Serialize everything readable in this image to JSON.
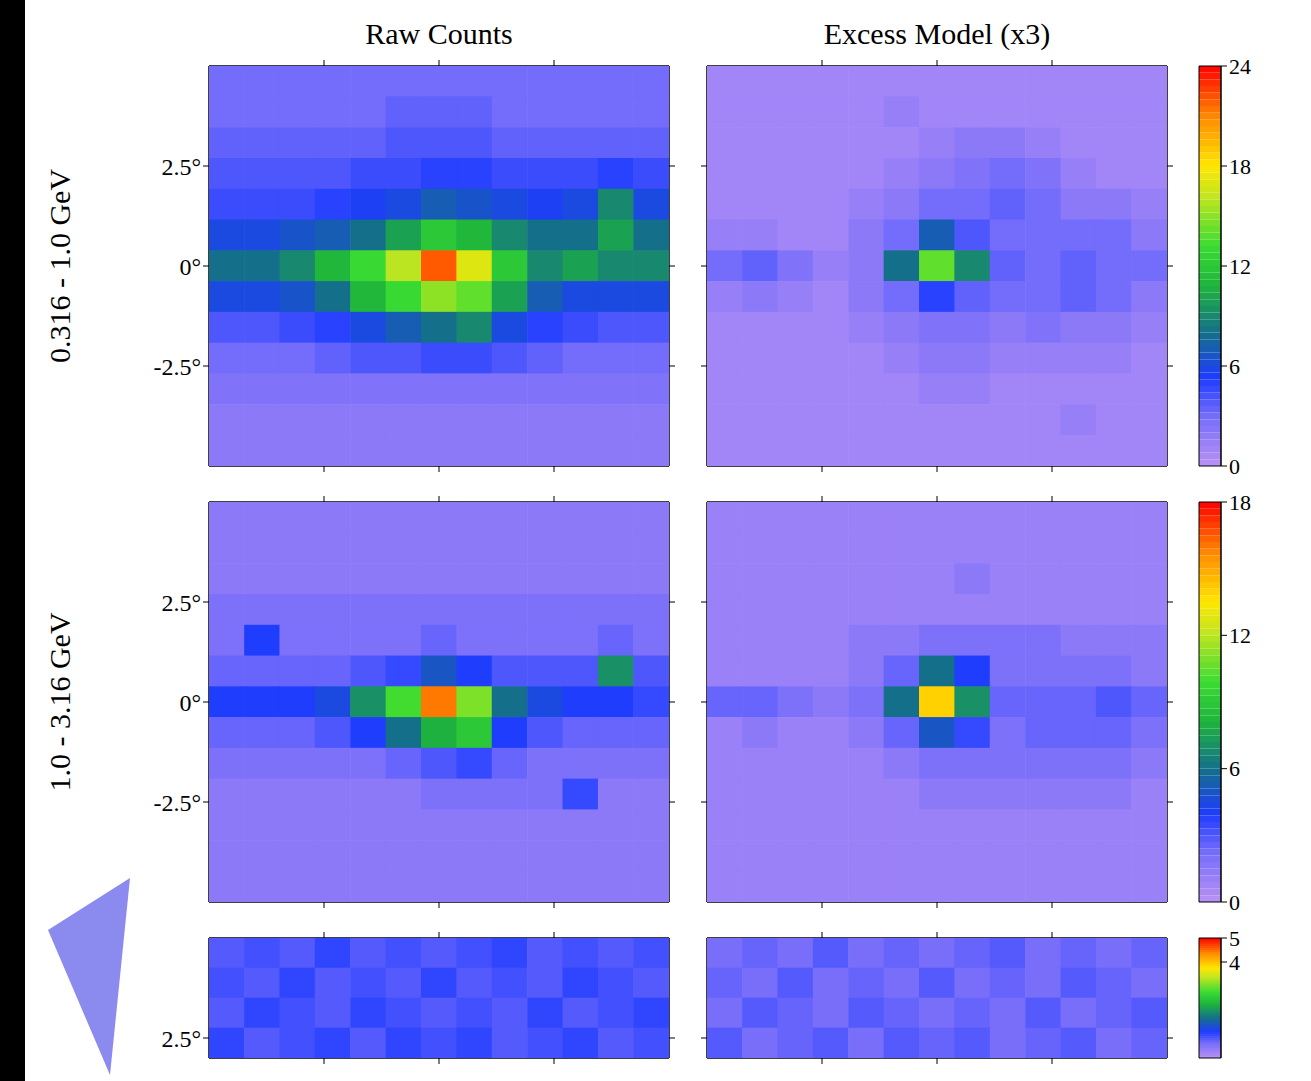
{
  "chart_data": [
    {
      "type": "heatmap",
      "ylabel": "0.316 - 1.0 GeV",
      "x": [
        -4.615,
        -3.846,
        -3.077,
        -2.308,
        -1.538,
        -0.769,
        0,
        0.769,
        1.538,
        2.308,
        3.077,
        3.846,
        4.615
      ],
      "y": [
        4.615,
        3.846,
        3.077,
        2.308,
        1.538,
        0.769,
        0,
        -0.769,
        -1.538,
        -2.308,
        -3.077,
        -3.846,
        -4.615
      ],
      "xlim": [
        -5,
        5
      ],
      "ylim": [
        -5,
        5
      ],
      "xticks": [
        -2.5,
        0,
        2.5
      ],
      "yticks": [
        {
          "value": 2.5,
          "label": "2.5°"
        },
        {
          "value": 0,
          "label": "0°"
        },
        {
          "value": -2.5,
          "label": "-2.5°"
        }
      ],
      "colorbar": {
        "lim": [
          0,
          24
        ],
        "ticks": [
          0,
          6,
          12,
          18,
          24
        ]
      },
      "panels": [
        {
          "title": "Raw Counts",
          "tick_labels": "y",
          "values": [
            [
              3,
              3,
              3,
              3,
              3,
              3,
              3,
              3,
              3,
              3,
              3,
              3,
              3
            ],
            [
              3,
              3,
              3,
              3,
              3,
              3.5,
              3.5,
              3.5,
              3,
              3,
              3,
              3,
              3
            ],
            [
              3.5,
              3.5,
              3.5,
              3.5,
              3.5,
              4,
              4,
              4,
              3.5,
              3.5,
              3.5,
              3.5,
              3.5
            ],
            [
              4,
              4,
              4,
              4,
              4.5,
              4.5,
              5,
              5,
              4.5,
              4.5,
              4.5,
              5,
              4.5
            ],
            [
              4.5,
              4.5,
              4.5,
              5,
              5.5,
              6,
              7,
              6.5,
              6,
              5.5,
              6,
              9,
              6
            ],
            [
              6,
              6,
              6.5,
              7,
              8,
              10,
              12,
              11,
              9,
              8,
              8,
              10,
              8
            ],
            [
              8,
              8,
              9,
              11,
              13,
              16,
              22,
              17,
              12,
              9,
              10,
              9,
              9
            ],
            [
              6,
              6,
              6.5,
              8,
              11,
              13,
              15,
              14,
              10,
              7,
              6,
              6,
              6
            ],
            [
              4,
              4,
              4.5,
              5,
              6,
              7,
              8,
              9,
              6,
              5,
              4.5,
              4,
              4
            ],
            [
              3,
              3,
              3,
              3.5,
              4,
              4,
              4.5,
              4.5,
              4,
              3.5,
              3,
              3,
              3
            ],
            [
              2.5,
              2.5,
              2.5,
              2.5,
              2.5,
              2.5,
              2.5,
              2.5,
              2.5,
              2.5,
              2.5,
              2.5,
              2.5
            ],
            [
              2,
              2,
              2,
              2,
              2,
              2,
              2,
              2,
              2,
              2,
              2,
              2,
              2
            ],
            [
              2,
              2,
              2,
              2,
              2,
              2,
              2,
              2,
              2,
              2,
              2,
              2,
              2
            ]
          ]
        },
        {
          "title": "Excess Model (x3)",
          "tick_labels": false,
          "values": [
            [
              1,
              1,
              1,
              1,
              1,
              1,
              1,
              1,
              1,
              1,
              1,
              1,
              1
            ],
            [
              1,
              1,
              1,
              1,
              1,
              1.5,
              1,
              1,
              1,
              1,
              1,
              1,
              1
            ],
            [
              1,
              1,
              1,
              1,
              1,
              1,
              1.5,
              2,
              2,
              1.5,
              1,
              1,
              1
            ],
            [
              1,
              1,
              1,
              1,
              1,
              1.5,
              2,
              2.5,
              3,
              2.5,
              1.5,
              1,
              1
            ],
            [
              1,
              1,
              1,
              1,
              1.5,
              2,
              3,
              3,
              3.5,
              3,
              2,
              2,
              1.5
            ],
            [
              1.5,
              1.5,
              1,
              1,
              2,
              3,
              7,
              4,
              3,
              3,
              3,
              3,
              2
            ],
            [
              3,
              3.5,
              2.5,
              1.5,
              2,
              8,
              14,
              9,
              3.5,
              3,
              3.5,
              3,
              3
            ],
            [
              1.5,
              2,
              1.5,
              1,
              2,
              3,
              5,
              3.5,
              3,
              3,
              3.5,
              3,
              2
            ],
            [
              1,
              1,
              1,
              1,
              1.5,
              2,
              2.5,
              2.5,
              2,
              2.5,
              2,
              2,
              1.5
            ],
            [
              1,
              1,
              1,
              1,
              1,
              1.5,
              2,
              2,
              1.5,
              1.5,
              1.5,
              1.5,
              1
            ],
            [
              1,
              1,
              1,
              1,
              1,
              1,
              1.5,
              1.5,
              1,
              1,
              1,
              1,
              1
            ],
            [
              1,
              1,
              1,
              1,
              1,
              1,
              1,
              1,
              1,
              1,
              1.5,
              1,
              1
            ],
            [
              1,
              1,
              1,
              1,
              1,
              1,
              1,
              1,
              1,
              1,
              1,
              1,
              1
            ]
          ]
        }
      ]
    },
    {
      "type": "heatmap",
      "ylabel": "1.0 - 3.16 GeV",
      "x": [
        -4.615,
        -3.846,
        -3.077,
        -2.308,
        -1.538,
        -0.769,
        0,
        0.769,
        1.538,
        2.308,
        3.077,
        3.846,
        4.615
      ],
      "y": [
        4.615,
        3.846,
        3.077,
        2.308,
        1.538,
        0.769,
        0,
        -0.769,
        -1.538,
        -2.308,
        -3.077,
        -3.846,
        -4.615
      ],
      "xlim": [
        -5,
        5
      ],
      "ylim": [
        -5,
        5
      ],
      "xticks": [
        -2.5,
        0,
        2.5
      ],
      "yticks": [
        {
          "value": 2.5,
          "label": "2.5°"
        },
        {
          "value": 0,
          "label": "0°"
        },
        {
          "value": -2.5,
          "label": "-2.5°"
        }
      ],
      "colorbar": {
        "lim": [
          0,
          18
        ],
        "ticks": [
          0,
          6,
          12,
          18
        ]
      },
      "panels": [
        {
          "tick_labels": "y",
          "values": [
            [
              1.5,
              1.5,
              1.5,
              1.5,
              1.5,
              1.5,
              1.5,
              1.5,
              1.5,
              1.5,
              1.5,
              1.5,
              1.5
            ],
            [
              1.5,
              1.5,
              1.5,
              1.5,
              1.5,
              1.5,
              1.5,
              1.5,
              1.5,
              1.5,
              1.5,
              1.5,
              1.5
            ],
            [
              1.5,
              1.5,
              1.5,
              1.5,
              1.5,
              1.5,
              1.5,
              1.5,
              1.5,
              1.5,
              1.5,
              1.5,
              1.5
            ],
            [
              2,
              2,
              2,
              2,
              2,
              2,
              2,
              2,
              2,
              2,
              2,
              2,
              2
            ],
            [
              2,
              4,
              2,
              2,
              2,
              2,
              2.5,
              2,
              2,
              2,
              2,
              2.5,
              2
            ],
            [
              2.5,
              2.5,
              2.5,
              2.5,
              3,
              3.5,
              5,
              4,
              3,
              3,
              3,
              7,
              3
            ],
            [
              4,
              4,
              4,
              4.5,
              7,
              10,
              16,
              11,
              6,
              4.5,
              4,
              4,
              3.5
            ],
            [
              2.5,
              2.5,
              2.5,
              3,
              4,
              6,
              8,
              9,
              4,
              3,
              2.5,
              2.5,
              2.5
            ],
            [
              2,
              2,
              2,
              2,
              2,
              2.5,
              3,
              3.5,
              2.5,
              2,
              2,
              2,
              2
            ],
            [
              1.5,
              1.5,
              1.5,
              1.5,
              1.5,
              1.5,
              2,
              2,
              2,
              2,
              3.5,
              1.5,
              1.5
            ],
            [
              1.5,
              1.5,
              1.5,
              1.5,
              1.5,
              1.5,
              1.5,
              1.5,
              1.5,
              1.5,
              1.5,
              1.5,
              1.5
            ],
            [
              1.5,
              1.5,
              1.5,
              1.5,
              1.5,
              1.5,
              1.5,
              1.5,
              1.5,
              1.5,
              1.5,
              1.5,
              1.5
            ],
            [
              1.5,
              1.5,
              1.5,
              1.5,
              1.5,
              1.5,
              1.5,
              1.5,
              1.5,
              1.5,
              1.5,
              1.5,
              1.5
            ]
          ]
        },
        {
          "tick_labels": false,
          "values": [
            [
              1,
              1,
              1,
              1,
              1,
              1,
              1,
              1,
              1,
              1,
              1,
              1,
              1
            ],
            [
              1,
              1,
              1,
              1,
              1,
              1,
              1,
              1,
              1,
              1,
              1,
              1,
              1
            ],
            [
              1,
              1,
              1,
              1,
              1,
              1,
              1,
              1.5,
              1,
              1,
              1,
              1,
              1
            ],
            [
              1,
              1,
              1,
              1,
              1,
              1,
              1,
              1,
              1,
              1,
              1,
              1,
              1
            ],
            [
              1,
              1,
              1,
              1,
              1.5,
              1.5,
              2,
              2,
              2,
              2,
              1.5,
              1.5,
              1.5
            ],
            [
              1,
              1,
              1,
              1,
              1.5,
              2.5,
              6,
              4,
              2,
              2,
              2,
              2,
              1.5
            ],
            [
              2.5,
              2.5,
              2,
              1.5,
              2,
              6,
              14,
              7,
              2.5,
              2.5,
              2.5,
              3,
              2.5
            ],
            [
              1,
              1.5,
              1,
              1,
              1.5,
              2.5,
              5,
              3.5,
              2,
              2.5,
              2.5,
              2.5,
              2
            ],
            [
              1,
              1,
              1,
              1,
              1,
              1.5,
              2,
              2,
              2,
              2,
              2,
              2,
              1.5
            ],
            [
              1,
              1,
              1,
              1,
              1,
              1,
              1.5,
              1.5,
              1.5,
              1.5,
              1.5,
              1.5,
              1
            ],
            [
              1,
              1,
              1,
              1,
              1,
              1,
              1,
              1,
              1,
              1,
              1,
              1,
              1
            ],
            [
              1,
              1,
              1,
              1,
              1,
              1,
              1,
              1,
              1,
              1,
              1,
              1,
              1
            ],
            [
              1,
              1,
              1,
              1,
              1,
              1,
              1,
              1,
              1,
              1,
              1,
              1,
              1
            ]
          ]
        }
      ]
    },
    {
      "type": "heatmap",
      "x": [
        -4.615,
        -3.846,
        -3.077,
        -2.308,
        -1.538,
        -0.769,
        0,
        0.769,
        1.538,
        2.308,
        3.077,
        3.846,
        4.615
      ],
      "y": [
        4.625,
        3.875,
        3.125,
        2.375
      ],
      "xlim": [
        -5,
        5
      ],
      "ylim": [
        2,
        5
      ],
      "xticks": [
        -2.5,
        0,
        2.5
      ],
      "yticks": [
        {
          "value": 2.5,
          "label": "2.5°"
        }
      ],
      "colorbar": {
        "lim": [
          0,
          5
        ],
        "ticks": [
          4,
          5
        ]
      },
      "panels": [
        {
          "tick_labels": "y",
          "values": [
            [
              0.8,
              0.9,
              0.8,
              1,
              0.8,
              0.9,
              0.8,
              0.9,
              1,
              0.8,
              0.9,
              0.8,
              0.9
            ],
            [
              0.9,
              0.8,
              1,
              0.8,
              0.9,
              0.8,
              1,
              0.8,
              0.9,
              0.8,
              1,
              0.9,
              0.8
            ],
            [
              0.8,
              1,
              0.9,
              0.8,
              1,
              0.9,
              0.8,
              0.9,
              0.8,
              1,
              0.8,
              0.9,
              1
            ],
            [
              1,
              0.8,
              0.9,
              1,
              0.8,
              1,
              0.9,
              1,
              0.8,
              0.9,
              1,
              0.8,
              0.9
            ]
          ]
        },
        {
          "tick_labels": false,
          "values": [
            [
              0.6,
              0.7,
              0.6,
              0.8,
              0.6,
              0.7,
              0.6,
              0.7,
              0.8,
              0.6,
              0.7,
              0.6,
              0.7
            ],
            [
              0.7,
              0.6,
              0.8,
              0.6,
              0.7,
              0.6,
              0.8,
              0.6,
              0.7,
              0.6,
              0.8,
              0.7,
              0.6
            ],
            [
              0.6,
              0.8,
              0.7,
              0.6,
              0.8,
              0.7,
              0.6,
              0.7,
              0.6,
              0.8,
              0.6,
              0.7,
              0.8
            ],
            [
              0.8,
              0.6,
              0.7,
              0.8,
              0.6,
              0.8,
              0.7,
              0.8,
              0.6,
              0.7,
              0.8,
              0.6,
              0.7
            ]
          ]
        }
      ]
    }
  ]
}
